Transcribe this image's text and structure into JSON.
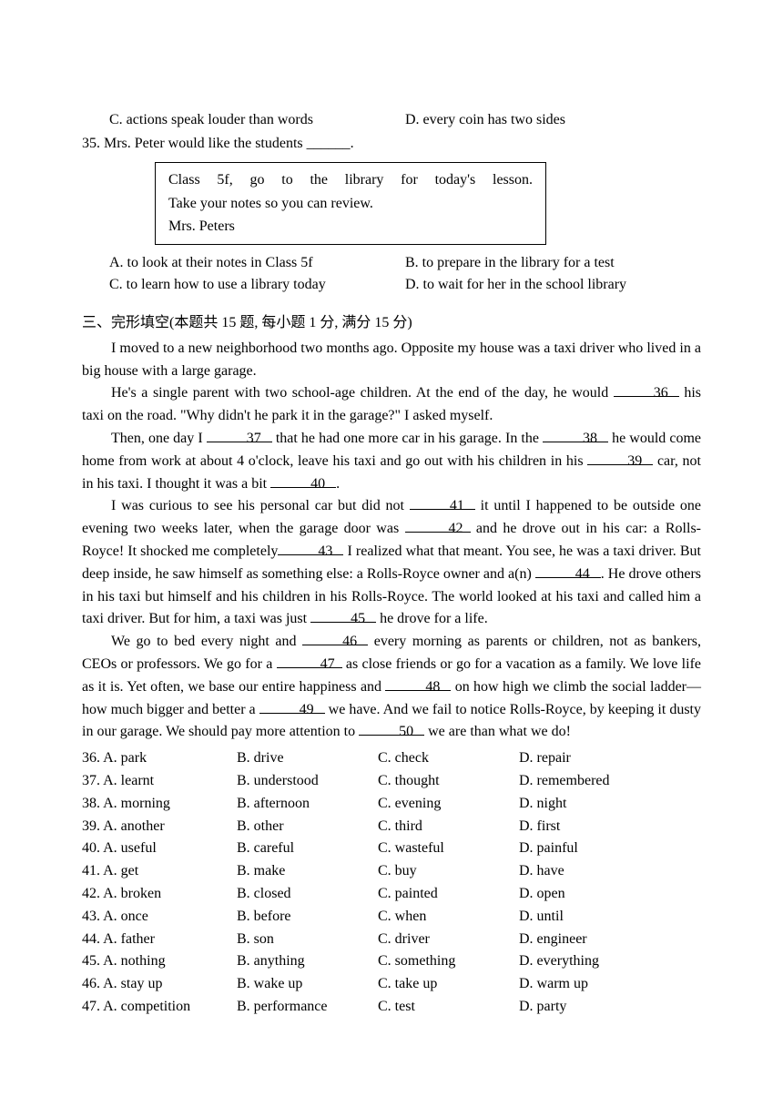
{
  "q34": {
    "optC": "C. actions speak louder than words",
    "optD": "D.  every coin has two sides"
  },
  "q35": {
    "stem": "35. Mrs. Peter would like the students ______.",
    "note_line1": "Class 5f, go to the library for today's lesson.",
    "note_line2": "Take your notes so you can review.",
    "note_line3": "Mrs. Peters",
    "optA": "A. to look at their notes in Class 5f",
    "optB": "B. to prepare in the library for a test",
    "optC": "C. to learn how to use a library today",
    "optD": "D. to wait for her in the school library"
  },
  "section3": {
    "heading": "三、完形填空(本题共 15 题, 每小题 1 分, 满分 15 分)"
  },
  "passage": {
    "p1a": "I moved to a new neighborhood two months ago. Opposite my house was a taxi driver who lived in a big house with a large garage.",
    "p2a": "He's a single parent with two school-age children. At the end of the day, he would ",
    "p2_blank1": "36",
    "p2b": " his taxi on the road. \"Why didn't he park it in the garage?\" I asked myself.",
    "p3a": "Then, one day I ",
    "p3_blank1": "37",
    "p3b": " that he had one more car in his garage. In the ",
    "p3_blank2": "38",
    "p3c": " he would come home from work at about 4 o'clock, leave his taxi and go out with his children in his ",
    "p3_blank3": "39",
    "p3d": " car, not in his taxi. I thought it was a bit ",
    "p3_blank4": "40",
    "p3e": ".",
    "p4a": "I was curious to see his personal car but did not ",
    "p4_blank1": "41",
    "p4b": " it until I happened to be outside one evening two weeks later, when the garage door was ",
    "p4_blank2": "42",
    "p4c": " and he drove out in his car: a Rolls-Royce! It shocked me completely",
    "p4_blank3": "43",
    "p4d": " I realized what that meant. You see, he was a taxi driver. But deep inside, he saw himself as something else: a Rolls-Royce owner and a(n) ",
    "p4_blank4": "44",
    "p4e": ". He drove others in his taxi but himself and his children in his Rolls-Royce. The world looked at his taxi and called him a taxi driver. But for him, a taxi was just ",
    "p4_blank5": "45",
    "p4f": " he drove for a life.",
    "p5a": "We go to bed every night and ",
    "p5_blank1": "46",
    "p5b": " every morning as parents or children, not as bankers, CEOs or professors. We go for a ",
    "p5_blank2": "47",
    "p5c": " as close friends or go for a vacation as a family. We love life as it is. Yet often, we base our entire happiness and ",
    "p5_blank3": "48",
    "p5d": " on how high we climb the social ladder—how much bigger and better a ",
    "p5_blank4": "49",
    "p5e": " we have. And we fail to notice Rolls-Royce, by keeping it dusty in our garage. We should pay more attention to ",
    "p5_blank5": "50",
    "p5f": " we are than what we do!"
  },
  "choices": [
    {
      "n": "36. A. park",
      "b": "B. drive",
      "c": "C. check",
      "d": "D. repair"
    },
    {
      "n": "37. A. learnt",
      "b": "B. understood",
      "c": "C. thought",
      "d": "D. remembered"
    },
    {
      "n": "38. A. morning",
      "b": "B. afternoon",
      "c": "C. evening",
      "d": "D. night"
    },
    {
      "n": "39. A. another",
      "b": "B. other",
      "c": "C. third",
      "d": "D. first"
    },
    {
      "n": "40. A. useful",
      "b": "B. careful",
      "c": "C. wasteful",
      "d": "D. painful"
    },
    {
      "n": "41. A. get",
      "b": "B. make",
      "c": "C. buy",
      "d": "D. have"
    },
    {
      "n": "42. A. broken",
      "b": "B. closed",
      "c": "C. painted",
      "d": "D. open"
    },
    {
      "n": "43. A. once",
      "b": "B. before",
      "c": "C. when",
      "d": "D. until"
    },
    {
      "n": "44. A. father",
      "b": "B. son",
      "c": "C. driver",
      "d": "D. engineer"
    },
    {
      "n": "45. A. nothing",
      "b": "B. anything",
      "c": "C. something",
      "d": "D. everything"
    },
    {
      "n": "46. A. stay up",
      "b": "B. wake up",
      "c": "C. take up",
      "d": "D. warm up"
    },
    {
      "n": "47. A. competition",
      "b": "B. performance",
      "c": "C. test",
      "d": "D. party"
    }
  ]
}
